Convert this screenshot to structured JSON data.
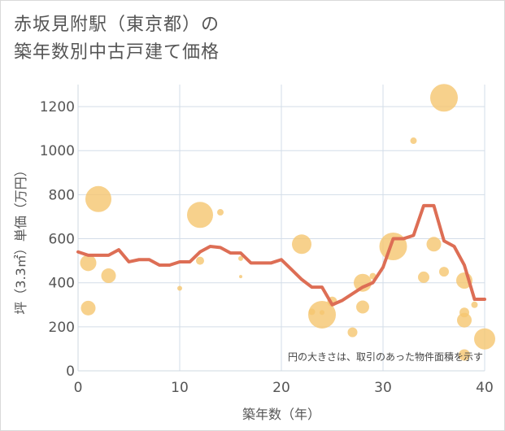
{
  "chart_data": {
    "type": "scatter",
    "title_lines": [
      "赤坂見附駅（東京都）の",
      "築年数別中古戸建て価格"
    ],
    "xlabel": "築年数（年）",
    "ylabel": "坪（3.3㎡）単価（万円）",
    "xlim": [
      0,
      40
    ],
    "ylim": [
      0,
      1300
    ],
    "x_ticks": [
      0,
      10,
      20,
      30,
      40
    ],
    "y_ticks": [
      0,
      200,
      400,
      600,
      800,
      1000,
      1200
    ],
    "grid": true,
    "note": "円の大きさは、取引のあった物件面積を示す",
    "colors": {
      "bubble": "#f5c66f",
      "line": "#dd6e55",
      "grid": "#d3dde8"
    },
    "bubbles": [
      {
        "x": 1,
        "y": 490,
        "size": 10
      },
      {
        "x": 1,
        "y": 285,
        "size": 9
      },
      {
        "x": 2,
        "y": 780,
        "size": 16
      },
      {
        "x": 3,
        "y": 432,
        "size": 9
      },
      {
        "x": 10,
        "y": 375,
        "size": 3
      },
      {
        "x": 12,
        "y": 708,
        "size": 16
      },
      {
        "x": 12,
        "y": 500,
        "size": 5
      },
      {
        "x": 14,
        "y": 720,
        "size": 4
      },
      {
        "x": 16,
        "y": 428,
        "size": 2
      },
      {
        "x": 16,
        "y": 510,
        "size": 3
      },
      {
        "x": 22,
        "y": 575,
        "size": 12
      },
      {
        "x": 23,
        "y": 268,
        "size": 4
      },
      {
        "x": 24,
        "y": 255,
        "size": 17
      },
      {
        "x": 24,
        "y": 265,
        "size": 3
      },
      {
        "x": 25,
        "y": 315,
        "size": 6
      },
      {
        "x": 27,
        "y": 175,
        "size": 6
      },
      {
        "x": 28,
        "y": 400,
        "size": 11
      },
      {
        "x": 28,
        "y": 290,
        "size": 8
      },
      {
        "x": 29,
        "y": 430,
        "size": 4
      },
      {
        "x": 31,
        "y": 565,
        "size": 17
      },
      {
        "x": 33,
        "y": 1045,
        "size": 4
      },
      {
        "x": 34,
        "y": 425,
        "size": 7
      },
      {
        "x": 35,
        "y": 575,
        "size": 9
      },
      {
        "x": 36,
        "y": 1240,
        "size": 17
      },
      {
        "x": 36,
        "y": 450,
        "size": 6
      },
      {
        "x": 38,
        "y": 410,
        "size": 10
      },
      {
        "x": 38,
        "y": 265,
        "size": 6
      },
      {
        "x": 38,
        "y": 230,
        "size": 9
      },
      {
        "x": 38,
        "y": 72,
        "size": 7
      },
      {
        "x": 39,
        "y": 300,
        "size": 4
      },
      {
        "x": 40,
        "y": 145,
        "size": 13
      }
    ],
    "line": {
      "x": [
        0,
        1,
        2,
        3,
        4,
        5,
        6,
        7,
        8,
        9,
        10,
        11,
        12,
        13,
        14,
        15,
        16,
        17,
        18,
        19,
        20,
        21,
        22,
        23,
        24,
        25,
        26,
        27,
        28,
        29,
        30,
        31,
        32,
        33,
        34,
        35,
        36,
        37,
        38,
        39,
        40
      ],
      "y": [
        540,
        525,
        525,
        525,
        550,
        495,
        505,
        505,
        480,
        480,
        495,
        495,
        540,
        565,
        560,
        535,
        535,
        490,
        490,
        490,
        505,
        460,
        415,
        380,
        380,
        300,
        320,
        350,
        380,
        400,
        470,
        600,
        600,
        615,
        750,
        750,
        590,
        565,
        480,
        325,
        325
      ]
    }
  }
}
